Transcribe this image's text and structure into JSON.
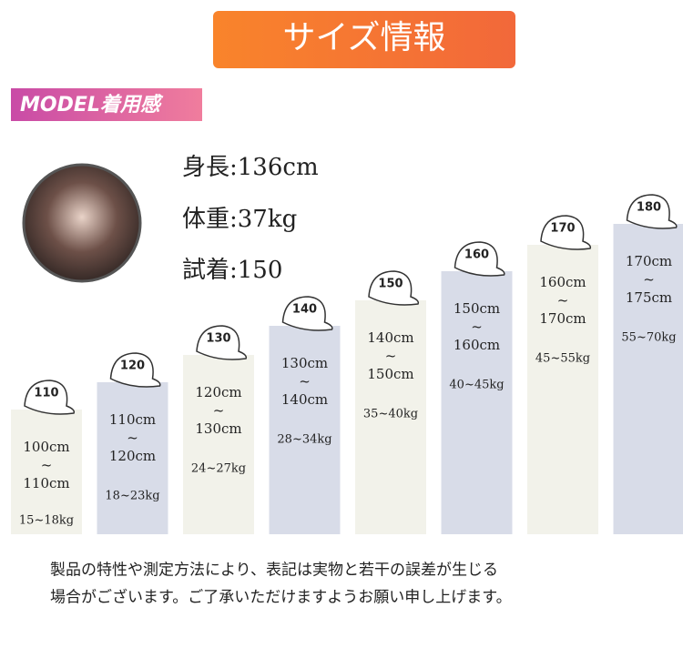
{
  "header": {
    "title": "サイズ情報"
  },
  "model": {
    "label": "MODEL着用感",
    "stats": [
      "身長:136cm",
      "体重:37kg",
      "試着:150"
    ]
  },
  "sizes": [
    {
      "cap": "110",
      "height_from": "100cm",
      "tilde": "~",
      "height_to": "110cm",
      "weight": "15~18kg"
    },
    {
      "cap": "120",
      "height_from": "110cm",
      "tilde": "~",
      "height_to": "120cm",
      "weight": "18~23kg"
    },
    {
      "cap": "130",
      "height_from": "120cm",
      "tilde": "~",
      "height_to": "130cm",
      "weight": "24~27kg"
    },
    {
      "cap": "140",
      "height_from": "130cm",
      "tilde": "~",
      "height_to": "140cm",
      "weight": "28~34kg"
    },
    {
      "cap": "150",
      "height_from": "140cm",
      "tilde": "~",
      "height_to": "150cm",
      "weight": "35~40kg"
    },
    {
      "cap": "160",
      "height_from": "150cm",
      "tilde": "~",
      "height_to": "160cm",
      "weight": "40~45kg"
    },
    {
      "cap": "170",
      "height_from": "160cm",
      "tilde": "~",
      "height_to": "170cm",
      "weight": "45~55kg"
    },
    {
      "cap": "180",
      "height_from": "170cm",
      "tilde": "~",
      "height_to": "175cm",
      "weight": "55~70kg"
    }
  ],
  "note": [
    "製品の特性や測定方法により、表記は実物と若干の誤差が生じる",
    "場合がございます。ご了承いただけますようお願い申し上げます。"
  ]
}
